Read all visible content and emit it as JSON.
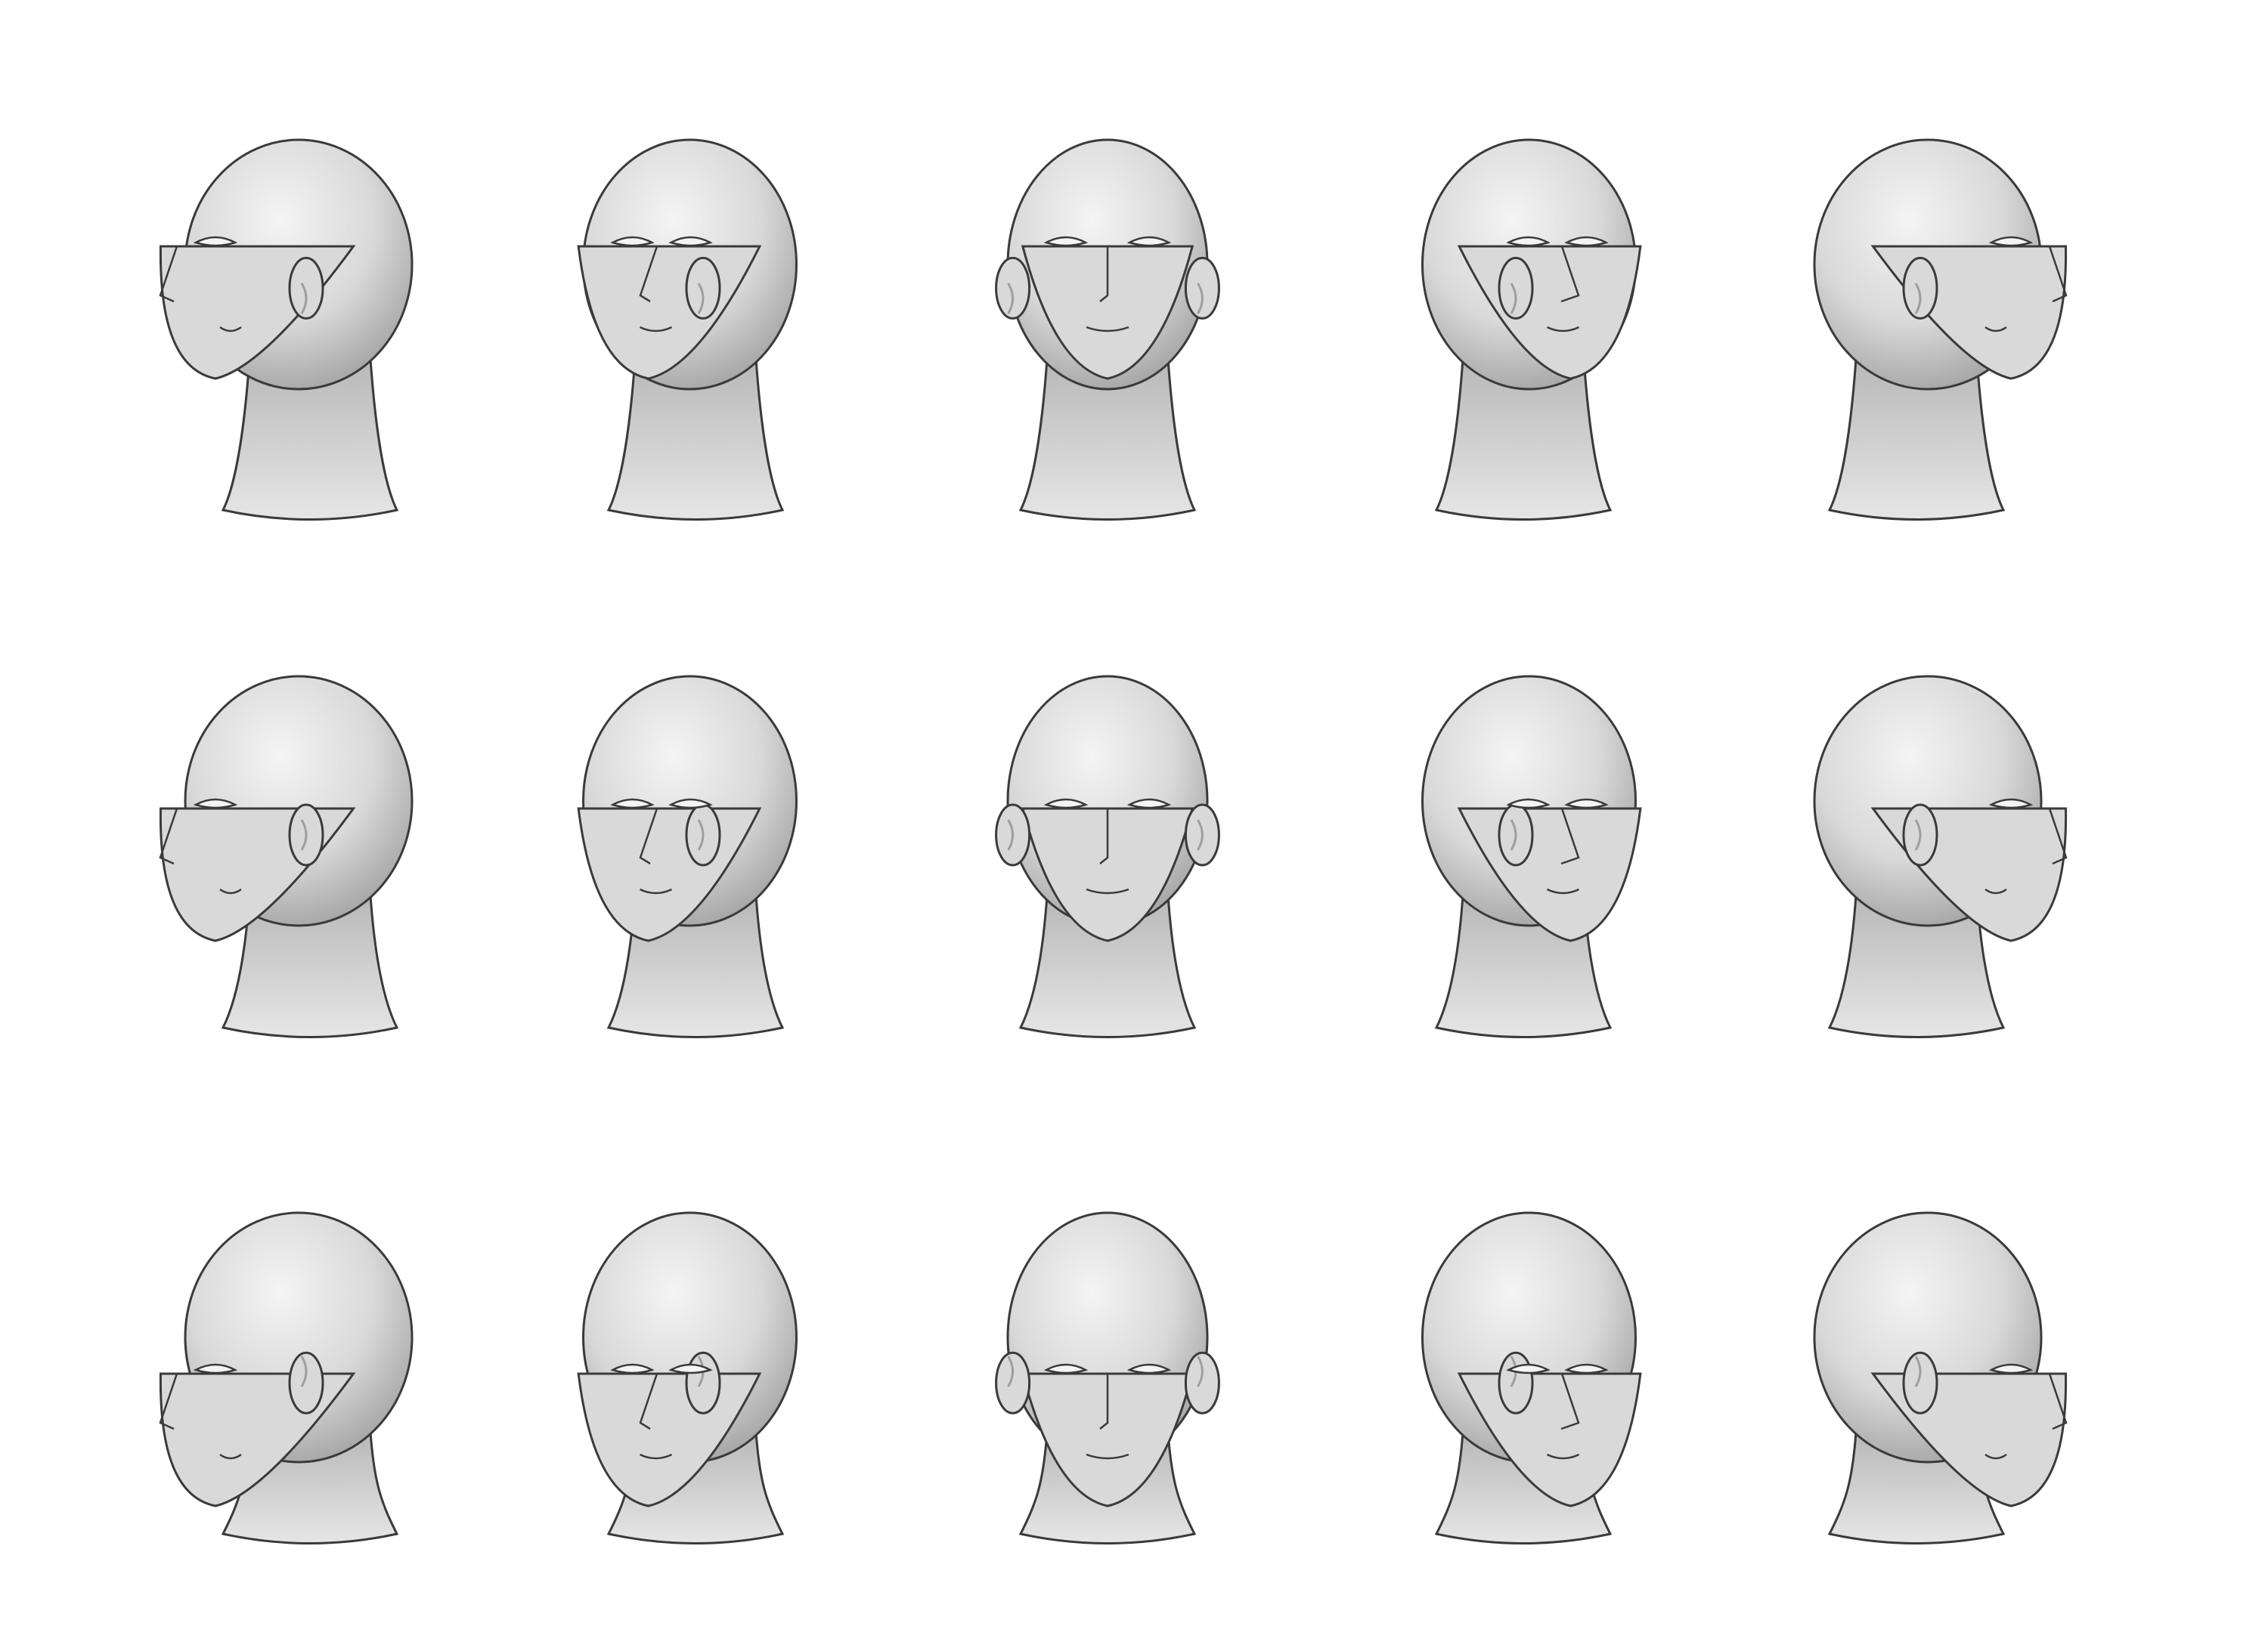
{
  "sheet": {
    "subject": "head-angle-reference",
    "background": "#ffffff",
    "skin": "#d9d9d9",
    "skin_light": "#f4f4f4",
    "skin_shadow": "#9e9e9e",
    "outline": "#3a3a3a"
  },
  "rows": [
    {
      "tilt": "up",
      "heads": [
        {
          "yaw": -90,
          "ears": [
            "right"
          ]
        },
        {
          "yaw": -45,
          "ears": [
            "right"
          ]
        },
        {
          "yaw": 0,
          "ears": [
            "left",
            "right"
          ]
        },
        {
          "yaw": 45,
          "ears": [
            "left"
          ]
        },
        {
          "yaw": 90,
          "ears": [
            "left"
          ]
        }
      ]
    },
    {
      "tilt": "level",
      "heads": [
        {
          "yaw": -90,
          "ears": [
            "right"
          ]
        },
        {
          "yaw": -45,
          "ears": [
            "right"
          ]
        },
        {
          "yaw": 0,
          "ears": [
            "left",
            "right"
          ]
        },
        {
          "yaw": 45,
          "ears": [
            "left"
          ]
        },
        {
          "yaw": 90,
          "ears": [
            "left"
          ]
        }
      ]
    },
    {
      "tilt": "down",
      "heads": [
        {
          "yaw": -90,
          "ears": [
            "right"
          ]
        },
        {
          "yaw": -45,
          "ears": [
            "right"
          ]
        },
        {
          "yaw": 0,
          "ears": [
            "left",
            "right"
          ]
        },
        {
          "yaw": 45,
          "ears": [
            "left"
          ]
        },
        {
          "yaw": 90,
          "ears": [
            "left"
          ]
        }
      ]
    }
  ]
}
